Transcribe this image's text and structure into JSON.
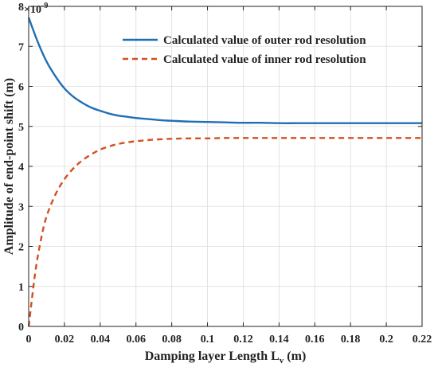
{
  "chart_data": {
    "type": "line",
    "title": "",
    "xlabel": "Damping layer Length L",
    "xlabel_sub": "v",
    "xlabel_unit": " (m)",
    "ylabel": "Amplitude of end-point shift (m)",
    "y_multiplier_base": "×10",
    "y_multiplier_exp": "-9",
    "xlim": [
      0,
      0.22
    ],
    "ylim": [
      0,
      8
    ],
    "xticks": [
      0,
      0.02,
      0.04,
      0.06,
      0.08,
      0.1,
      0.12,
      0.14,
      0.16,
      0.18,
      0.2,
      0.22
    ],
    "xtick_labels": [
      "0",
      "0.02",
      "0.04",
      "0.06",
      "0.08",
      "0.1",
      "0.12",
      "0.14",
      "0.16",
      "0.18",
      "0.2",
      "0.22"
    ],
    "yticks": [
      0,
      1,
      2,
      3,
      4,
      5,
      6,
      7,
      8
    ],
    "ytick_labels": [
      "0",
      "1",
      "2",
      "3",
      "4",
      "5",
      "6",
      "7",
      "8"
    ],
    "grid": true,
    "legend_position": "top-right",
    "series": [
      {
        "name": "Calculated value of outer rod resolution",
        "color": "#1f6fb5",
        "style": "solid",
        "x": [
          0,
          0.005,
          0.01,
          0.015,
          0.02,
          0.025,
          0.03,
          0.035,
          0.04,
          0.045,
          0.05,
          0.055,
          0.06,
          0.065,
          0.07,
          0.075,
          0.08,
          0.09,
          0.1,
          0.11,
          0.12,
          0.13,
          0.14,
          0.15,
          0.16,
          0.17,
          0.18,
          0.19,
          0.2,
          0.21,
          0.22
        ],
        "y": [
          7.72,
          7.12,
          6.62,
          6.25,
          5.95,
          5.74,
          5.59,
          5.47,
          5.39,
          5.32,
          5.27,
          5.24,
          5.21,
          5.19,
          5.17,
          5.15,
          5.14,
          5.12,
          5.11,
          5.1,
          5.09,
          5.09,
          5.08,
          5.08,
          5.08,
          5.08,
          5.08,
          5.08,
          5.08,
          5.08,
          5.08
        ]
      },
      {
        "name": "Calculated value of inner rod resolution",
        "color": "#d2501f",
        "style": "dashed",
        "x": [
          0,
          0.002,
          0.004,
          0.007,
          0.01,
          0.015,
          0.02,
          0.025,
          0.03,
          0.035,
          0.04,
          0.045,
          0.05,
          0.055,
          0.06,
          0.065,
          0.07,
          0.08,
          0.09,
          0.1,
          0.11,
          0.12,
          0.13,
          0.14,
          0.15,
          0.16,
          0.17,
          0.18,
          0.19,
          0.2,
          0.21,
          0.22
        ],
        "y": [
          0.0,
          0.75,
          1.45,
          2.2,
          2.75,
          3.3,
          3.68,
          3.95,
          4.15,
          4.3,
          4.42,
          4.5,
          4.56,
          4.6,
          4.63,
          4.65,
          4.67,
          4.69,
          4.7,
          4.7,
          4.71,
          4.71,
          4.71,
          4.71,
          4.71,
          4.71,
          4.71,
          4.71,
          4.71,
          4.71,
          4.71,
          4.71
        ]
      }
    ]
  }
}
